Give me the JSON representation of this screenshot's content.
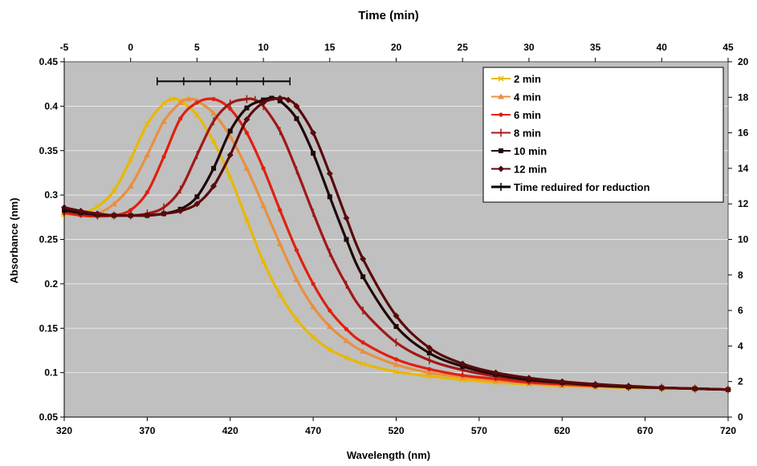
{
  "chart_data": {
    "type": "line",
    "title": "",
    "xlabel": "Wavelength (nm)",
    "ylabel": "Absorbance (nm)",
    "x2label": "Time (min)",
    "xlim": [
      320,
      720
    ],
    "ylim": [
      0.05,
      0.45
    ],
    "x2lim": [
      -5,
      45
    ],
    "y2lim": [
      0,
      20
    ],
    "plot_background": "#c0c0c0",
    "grid": "horizontal",
    "legend_position": "top-right",
    "x_ticks": [
      "320",
      "370",
      "420",
      "470",
      "520",
      "570",
      "620",
      "670",
      "720"
    ],
    "y_ticks": [
      "0.05",
      "0.1",
      "0.15",
      "0.2",
      "0.25",
      "0.3",
      "0.35",
      "0.4",
      "0.45"
    ],
    "x2_ticks": [
      "-5",
      "0",
      "5",
      "10",
      "15",
      "20",
      "25",
      "30",
      "35",
      "40",
      "45"
    ],
    "y2_ticks": [
      "0",
      "2",
      "4",
      "6",
      "8",
      "10",
      "12",
      "14",
      "16",
      "18",
      "20"
    ],
    "series": [
      {
        "name": "2 min",
        "color": "#e8b800",
        "marker": "x",
        "x": [
          320,
          330,
          340,
          350,
          360,
          370,
          380,
          385,
          390,
          400,
          410,
          420,
          430,
          440,
          450,
          460,
          470,
          480,
          490,
          500,
          520,
          540,
          560,
          580,
          600,
          620,
          640,
          660,
          680,
          700,
          720
        ],
        "y": [
          0.278,
          0.279,
          0.287,
          0.305,
          0.34,
          0.38,
          0.403,
          0.408,
          0.406,
          0.39,
          0.36,
          0.32,
          0.272,
          0.225,
          0.188,
          0.16,
          0.14,
          0.126,
          0.117,
          0.11,
          0.101,
          0.096,
          0.092,
          0.089,
          0.087,
          0.085,
          0.084,
          0.083,
          0.082,
          0.082,
          0.081
        ]
      },
      {
        "name": "4 min",
        "color": "#e89040",
        "marker": "triangle",
        "x": [
          320,
          330,
          340,
          350,
          360,
          370,
          380,
          390,
          395,
          400,
          410,
          420,
          430,
          440,
          450,
          460,
          470,
          480,
          490,
          500,
          520,
          540,
          560,
          580,
          600,
          620,
          640,
          660,
          680,
          700,
          720
        ],
        "y": [
          0.28,
          0.278,
          0.279,
          0.29,
          0.31,
          0.345,
          0.383,
          0.404,
          0.408,
          0.406,
          0.392,
          0.366,
          0.33,
          0.288,
          0.245,
          0.205,
          0.174,
          0.152,
          0.136,
          0.124,
          0.109,
          0.1,
          0.095,
          0.091,
          0.088,
          0.086,
          0.085,
          0.084,
          0.083,
          0.082,
          0.081
        ]
      },
      {
        "name": "6 min",
        "color": "#e02010",
        "marker": "circle",
        "x": [
          320,
          330,
          340,
          350,
          360,
          370,
          380,
          390,
          400,
          410,
          420,
          430,
          440,
          450,
          460,
          470,
          480,
          490,
          500,
          520,
          540,
          560,
          580,
          600,
          620,
          640,
          660,
          680,
          700,
          720
        ],
        "y": [
          0.28,
          0.277,
          0.276,
          0.277,
          0.283,
          0.303,
          0.343,
          0.386,
          0.404,
          0.408,
          0.397,
          0.37,
          0.33,
          0.283,
          0.238,
          0.2,
          0.17,
          0.149,
          0.134,
          0.115,
          0.104,
          0.097,
          0.093,
          0.089,
          0.087,
          0.085,
          0.084,
          0.083,
          0.082,
          0.081
        ]
      },
      {
        "name": "8 min",
        "color": "#a01818",
        "marker": "plus",
        "x": [
          320,
          330,
          340,
          350,
          360,
          370,
          380,
          390,
          400,
          410,
          420,
          430,
          435,
          440,
          450,
          460,
          470,
          480,
          490,
          500,
          520,
          540,
          560,
          580,
          600,
          620,
          640,
          660,
          680,
          700,
          720
        ],
        "y": [
          0.282,
          0.279,
          0.277,
          0.277,
          0.277,
          0.279,
          0.286,
          0.306,
          0.345,
          0.383,
          0.403,
          0.408,
          0.407,
          0.4,
          0.372,
          0.328,
          0.28,
          0.235,
          0.199,
          0.17,
          0.134,
          0.114,
          0.103,
          0.096,
          0.091,
          0.088,
          0.086,
          0.084,
          0.083,
          0.082,
          0.081
        ]
      },
      {
        "name": "10 min",
        "color": "#200808",
        "marker": "square",
        "x": [
          320,
          330,
          340,
          350,
          360,
          370,
          380,
          390,
          400,
          410,
          420,
          430,
          440,
          445,
          450,
          460,
          470,
          480,
          490,
          500,
          520,
          540,
          560,
          580,
          600,
          620,
          640,
          660,
          680,
          700,
          720
        ],
        "y": [
          0.283,
          0.28,
          0.278,
          0.277,
          0.277,
          0.277,
          0.279,
          0.284,
          0.298,
          0.33,
          0.372,
          0.398,
          0.407,
          0.409,
          0.406,
          0.386,
          0.347,
          0.298,
          0.25,
          0.208,
          0.152,
          0.122,
          0.107,
          0.098,
          0.092,
          0.089,
          0.086,
          0.084,
          0.083,
          0.082,
          0.081
        ]
      },
      {
        "name": "12 min",
        "color": "#5a0a0a",
        "marker": "diamond",
        "x": [
          320,
          330,
          340,
          350,
          360,
          370,
          380,
          390,
          400,
          410,
          420,
          430,
          440,
          450,
          455,
          460,
          470,
          480,
          490,
          500,
          520,
          540,
          560,
          580,
          600,
          620,
          640,
          660,
          680,
          700,
          720
        ],
        "y": [
          0.286,
          0.282,
          0.279,
          0.277,
          0.277,
          0.277,
          0.279,
          0.282,
          0.29,
          0.31,
          0.345,
          0.385,
          0.404,
          0.409,
          0.407,
          0.4,
          0.37,
          0.324,
          0.274,
          0.228,
          0.164,
          0.128,
          0.11,
          0.1,
          0.094,
          0.09,
          0.087,
          0.085,
          0.083,
          0.082,
          0.081
        ]
      },
      {
        "name": "Time reduired for reduction",
        "color": "#000000",
        "marker": "plus",
        "axis": "secondary",
        "x": [
          2,
          4,
          6,
          8,
          10,
          12
        ],
        "y": [
          18.9,
          18.9,
          18.9,
          18.9,
          18.9,
          18.9
        ]
      }
    ]
  }
}
